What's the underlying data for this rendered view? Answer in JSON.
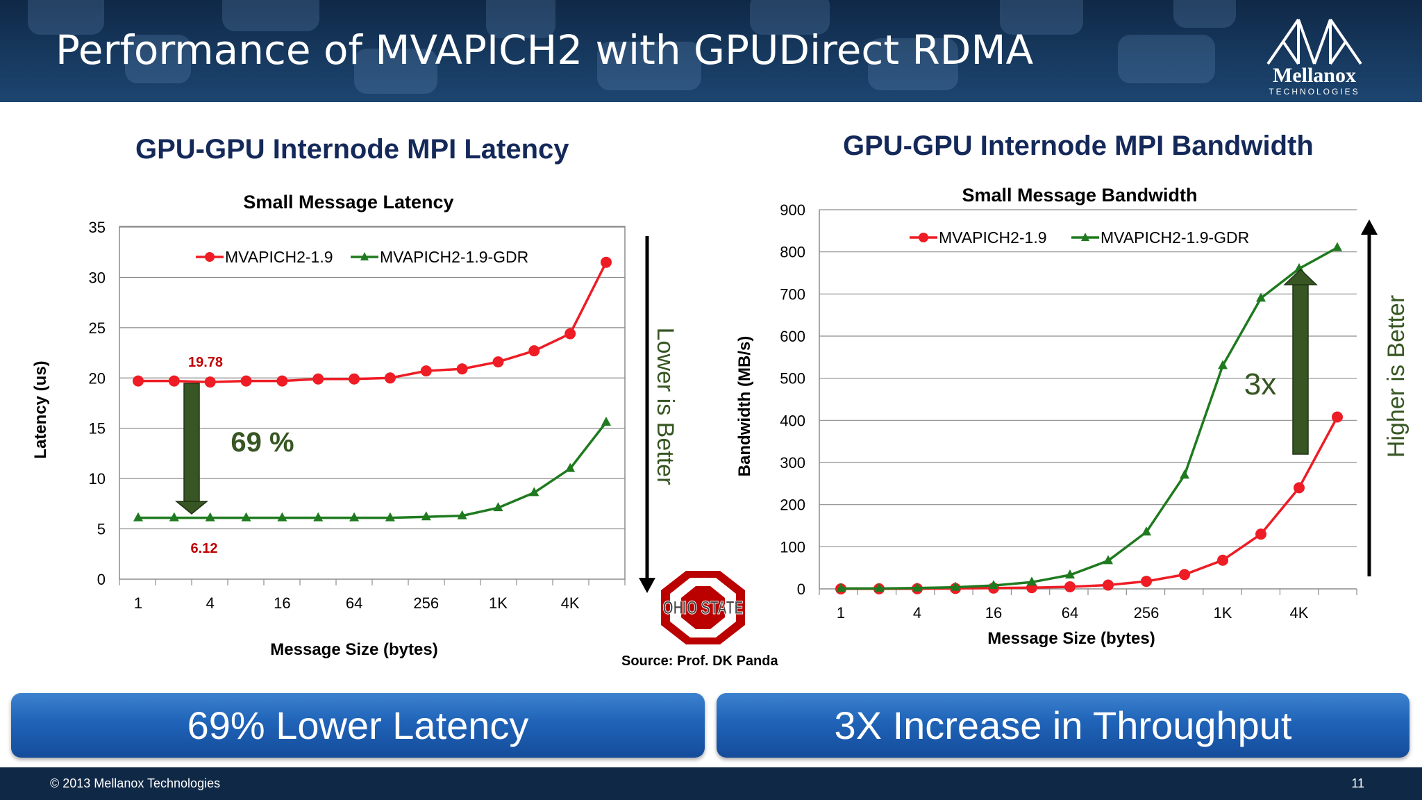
{
  "slide": {
    "title": "Performance of MVAPICH2 with GPUDirect RDMA",
    "logo_name": "Mellanox",
    "logo_sub": "TECHNOLOGIES",
    "latency_heading": "GPU-GPU Internode MPI Latency",
    "bandwidth_heading": "GPU-GPU Internode MPI Bandwidth",
    "source": "Source: Prof. DK Panda",
    "osu_logo_text": "OHIO STATE",
    "banner_left": "69% Lower Latency",
    "banner_right": "3X Increase in Throughput",
    "copyright": "© 2013 Mellanox Technologies",
    "page_number": "11",
    "colors": {
      "header": "#17395f",
      "red_series": "#ee1c24",
      "green_series": "#1f7a1f",
      "annotation_arrow": "#375623",
      "banner": "#1f63b8"
    }
  },
  "chart_data": [
    {
      "type": "line",
      "title": "Small Message Latency",
      "xlabel": "Message Size (bytes)",
      "ylabel": "Latency (us)",
      "categories": [
        "1",
        "2",
        "4",
        "8",
        "16",
        "32",
        "64",
        "128",
        "256",
        "512",
        "1K",
        "2K",
        "4K",
        "8K"
      ],
      "tick_labels": [
        "1",
        "",
        "4",
        "",
        "16",
        "",
        "64",
        "",
        "256",
        "",
        "1K",
        "",
        "4K",
        ""
      ],
      "ylim": [
        0,
        35
      ],
      "yticks": [
        0,
        5,
        10,
        15,
        20,
        25,
        30,
        35
      ],
      "grid": true,
      "legend": "top",
      "series": [
        {
          "name": "MVAPICH2-1.9",
          "marker": "circle",
          "color": "#ee1c24",
          "values": [
            19.7,
            19.7,
            19.6,
            19.7,
            19.7,
            19.9,
            19.9,
            20.0,
            20.7,
            20.9,
            21.6,
            22.7,
            24.4,
            31.5
          ]
        },
        {
          "name": "MVAPICH2-1.9-GDR",
          "marker": "triangle",
          "color": "#1f7a1f",
          "values": [
            6.1,
            6.1,
            6.1,
            6.1,
            6.1,
            6.1,
            6.1,
            6.1,
            6.2,
            6.3,
            7.1,
            8.6,
            11.0,
            15.6
          ]
        }
      ],
      "annotations": {
        "top_value": "19.78",
        "bottom_value": "6.12",
        "improvement": "69 %",
        "side_label": "Lower is Better"
      }
    },
    {
      "type": "line",
      "title": "Small Message Bandwidth",
      "xlabel": "Message Size (bytes)",
      "ylabel": "Bandwidth (MB/s)",
      "categories": [
        "1",
        "2",
        "4",
        "8",
        "16",
        "32",
        "64",
        "128",
        "256",
        "512",
        "1K",
        "2K",
        "4K",
        "8K"
      ],
      "tick_labels": [
        "1",
        "",
        "4",
        "",
        "16",
        "",
        "64",
        "",
        "256",
        "",
        "1K",
        "",
        "4K",
        ""
      ],
      "ylim": [
        0,
        900
      ],
      "yticks": [
        0,
        100,
        200,
        300,
        400,
        500,
        600,
        700,
        800,
        900
      ],
      "grid": true,
      "legend": "top",
      "series": [
        {
          "name": "MVAPICH2-1.9",
          "marker": "circle",
          "color": "#ee1c24",
          "values": [
            0.1,
            0.2,
            0.5,
            1,
            2,
            3,
            5,
            9,
            18,
            34,
            68,
            130,
            240,
            408
          ]
        },
        {
          "name": "MVAPICH2-1.9-GDR",
          "marker": "triangle",
          "color": "#1f7a1f",
          "values": [
            1,
            1,
            2,
            4,
            8,
            16,
            33,
            67,
            135,
            270,
            530,
            690,
            760,
            810
          ]
        }
      ],
      "annotations": {
        "improvement": "3x",
        "side_label": "Higher is Better"
      }
    }
  ]
}
